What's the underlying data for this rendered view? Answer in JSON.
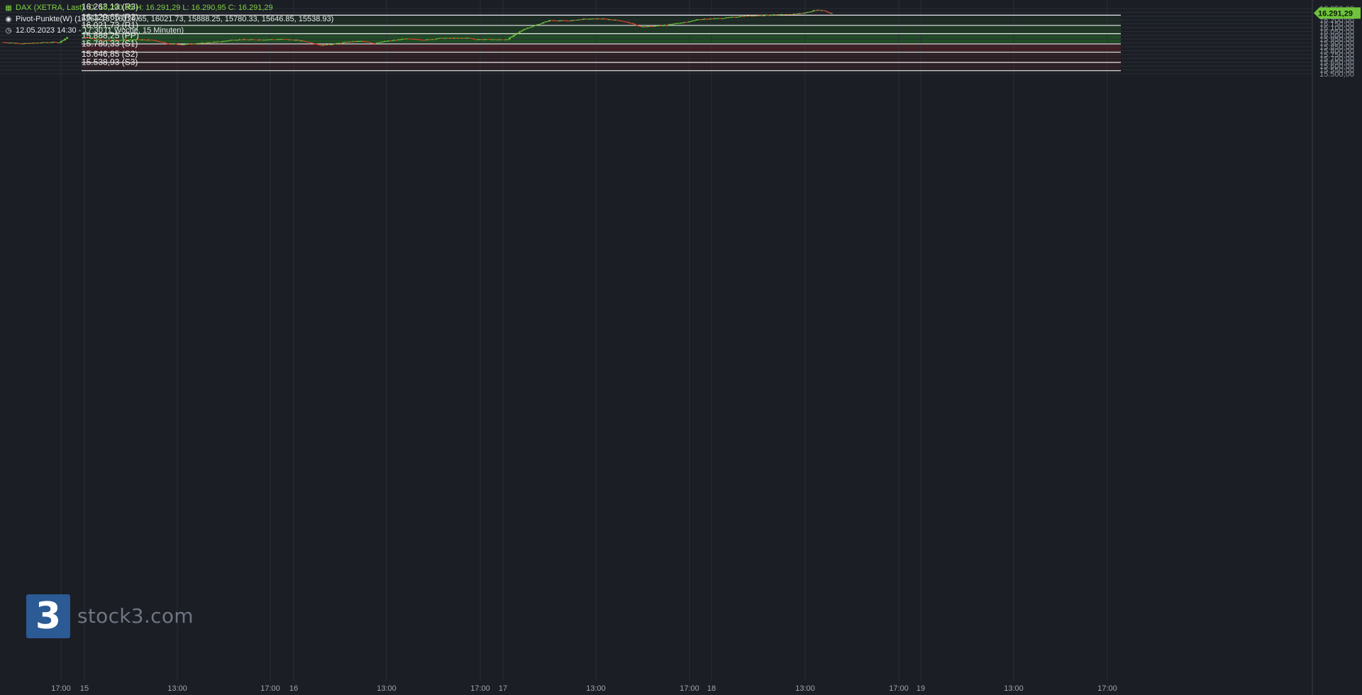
{
  "header": {
    "instrument": "DAX (XETRA, Last)",
    "ohlc": "O: 16.290,95  H: 16.291,29  L: 16.290,95  C: 16.291,29",
    "indicator": "Pivot-Punkte(W)  (16263.13,  16129.65,  16021.73,  15888.25,  15780.33,  15646.85,  15538.93)",
    "period": "12.05.2023 14:30 - 17:30   (1 Woche, 15 Minuten)"
  },
  "watermark": {
    "logo_text": "stock3.com",
    "logo_glyph": "3"
  },
  "colors": {
    "background": "#1b1e24",
    "up_candle": "#6ec43a",
    "down_candle": "#e0432f",
    "bull_zone": "#1f4d24",
    "bear_zone": "#4a1f24",
    "pivot_line": "#e8e8e8",
    "last_price_badge": "#6ec43a"
  },
  "chart_data": {
    "type": "candlestick",
    "title": "DAX (XETRA, Last)",
    "interval": "15 Minuten",
    "y_range": [
      15490,
      16375
    ],
    "y_ticks": [
      "16.350,00",
      "16.300,00",
      "16.250,00",
      "16.200,00",
      "16.150,00",
      "16.100,00",
      "16.050,00",
      "16.000,00",
      "15.950,00",
      "15.900,00",
      "15.850,00",
      "15.800,00",
      "15.750,00",
      "15.700,00",
      "15.650,00",
      "15.600,00",
      "15.550,00",
      "15.500,00"
    ],
    "x_ticks": [
      "17:00",
      "15",
      "13:00",
      "17:00",
      "16",
      "13:00",
      "17:00",
      "17",
      "13:00",
      "17:00",
      "18",
      "13:00",
      "17:00",
      "19",
      "13:00",
      "17:00"
    ],
    "last_price": "16.291,29",
    "pivot_levels": [
      {
        "name": "R3",
        "value": 16263.13,
        "label": "16.263,13 (R3)"
      },
      {
        "name": "R2",
        "value": 16129.65,
        "label": "16.129,65 (R2)"
      },
      {
        "name": "R1",
        "value": 16021.73,
        "label": "16.021,73 (R1)"
      },
      {
        "name": "PP",
        "value": 15888.25,
        "label": "15.888,25 (PP)"
      },
      {
        "name": "S1",
        "value": 15780.33,
        "label": "15.780,33 (S1)"
      },
      {
        "name": "S2",
        "value": 15646.85,
        "label": "15.646,85 (S2)"
      },
      {
        "name": "S3",
        "value": 15538.93,
        "label": "15.538,93 (S3)"
      }
    ],
    "path_anchors": [
      [
        0,
        15910
      ],
      [
        10,
        15893
      ],
      [
        24,
        15912
      ],
      [
        28,
        15908
      ],
      [
        32,
        15975
      ],
      [
        42,
        15938
      ],
      [
        60,
        15945
      ],
      [
        67,
        15938
      ],
      [
        75,
        15890
      ],
      [
        83,
        15882
      ],
      [
        95,
        15905
      ],
      [
        102,
        15920
      ],
      [
        108,
        15945
      ],
      [
        120,
        15945
      ],
      [
        133,
        15950
      ],
      [
        140,
        15938
      ],
      [
        146,
        15910
      ],
      [
        152,
        15870
      ],
      [
        159,
        15892
      ],
      [
        166,
        15915
      ],
      [
        172,
        15925
      ],
      [
        179,
        15895
      ],
      [
        181,
        15912
      ],
      [
        185,
        15925
      ],
      [
        194,
        15955
      ],
      [
        205,
        15943
      ],
      [
        212,
        15962
      ],
      [
        226,
        15965
      ],
      [
        229,
        15950
      ],
      [
        243,
        15945
      ],
      [
        246,
        15952
      ],
      [
        254,
        16080
      ],
      [
        267,
        16195
      ],
      [
        277,
        16190
      ],
      [
        284,
        16212
      ],
      [
        293,
        16218
      ],
      [
        302,
        16195
      ],
      [
        307,
        16165
      ],
      [
        313,
        16110
      ],
      [
        320,
        16122
      ],
      [
        334,
        16165
      ],
      [
        342,
        16208
      ],
      [
        354,
        16225
      ],
      [
        364,
        16250
      ],
      [
        376,
        16265
      ],
      [
        388,
        16275
      ],
      [
        395,
        16290
      ],
      [
        401,
        16330
      ],
      [
        405,
        16325
      ],
      [
        408,
        16290
      ]
    ]
  }
}
